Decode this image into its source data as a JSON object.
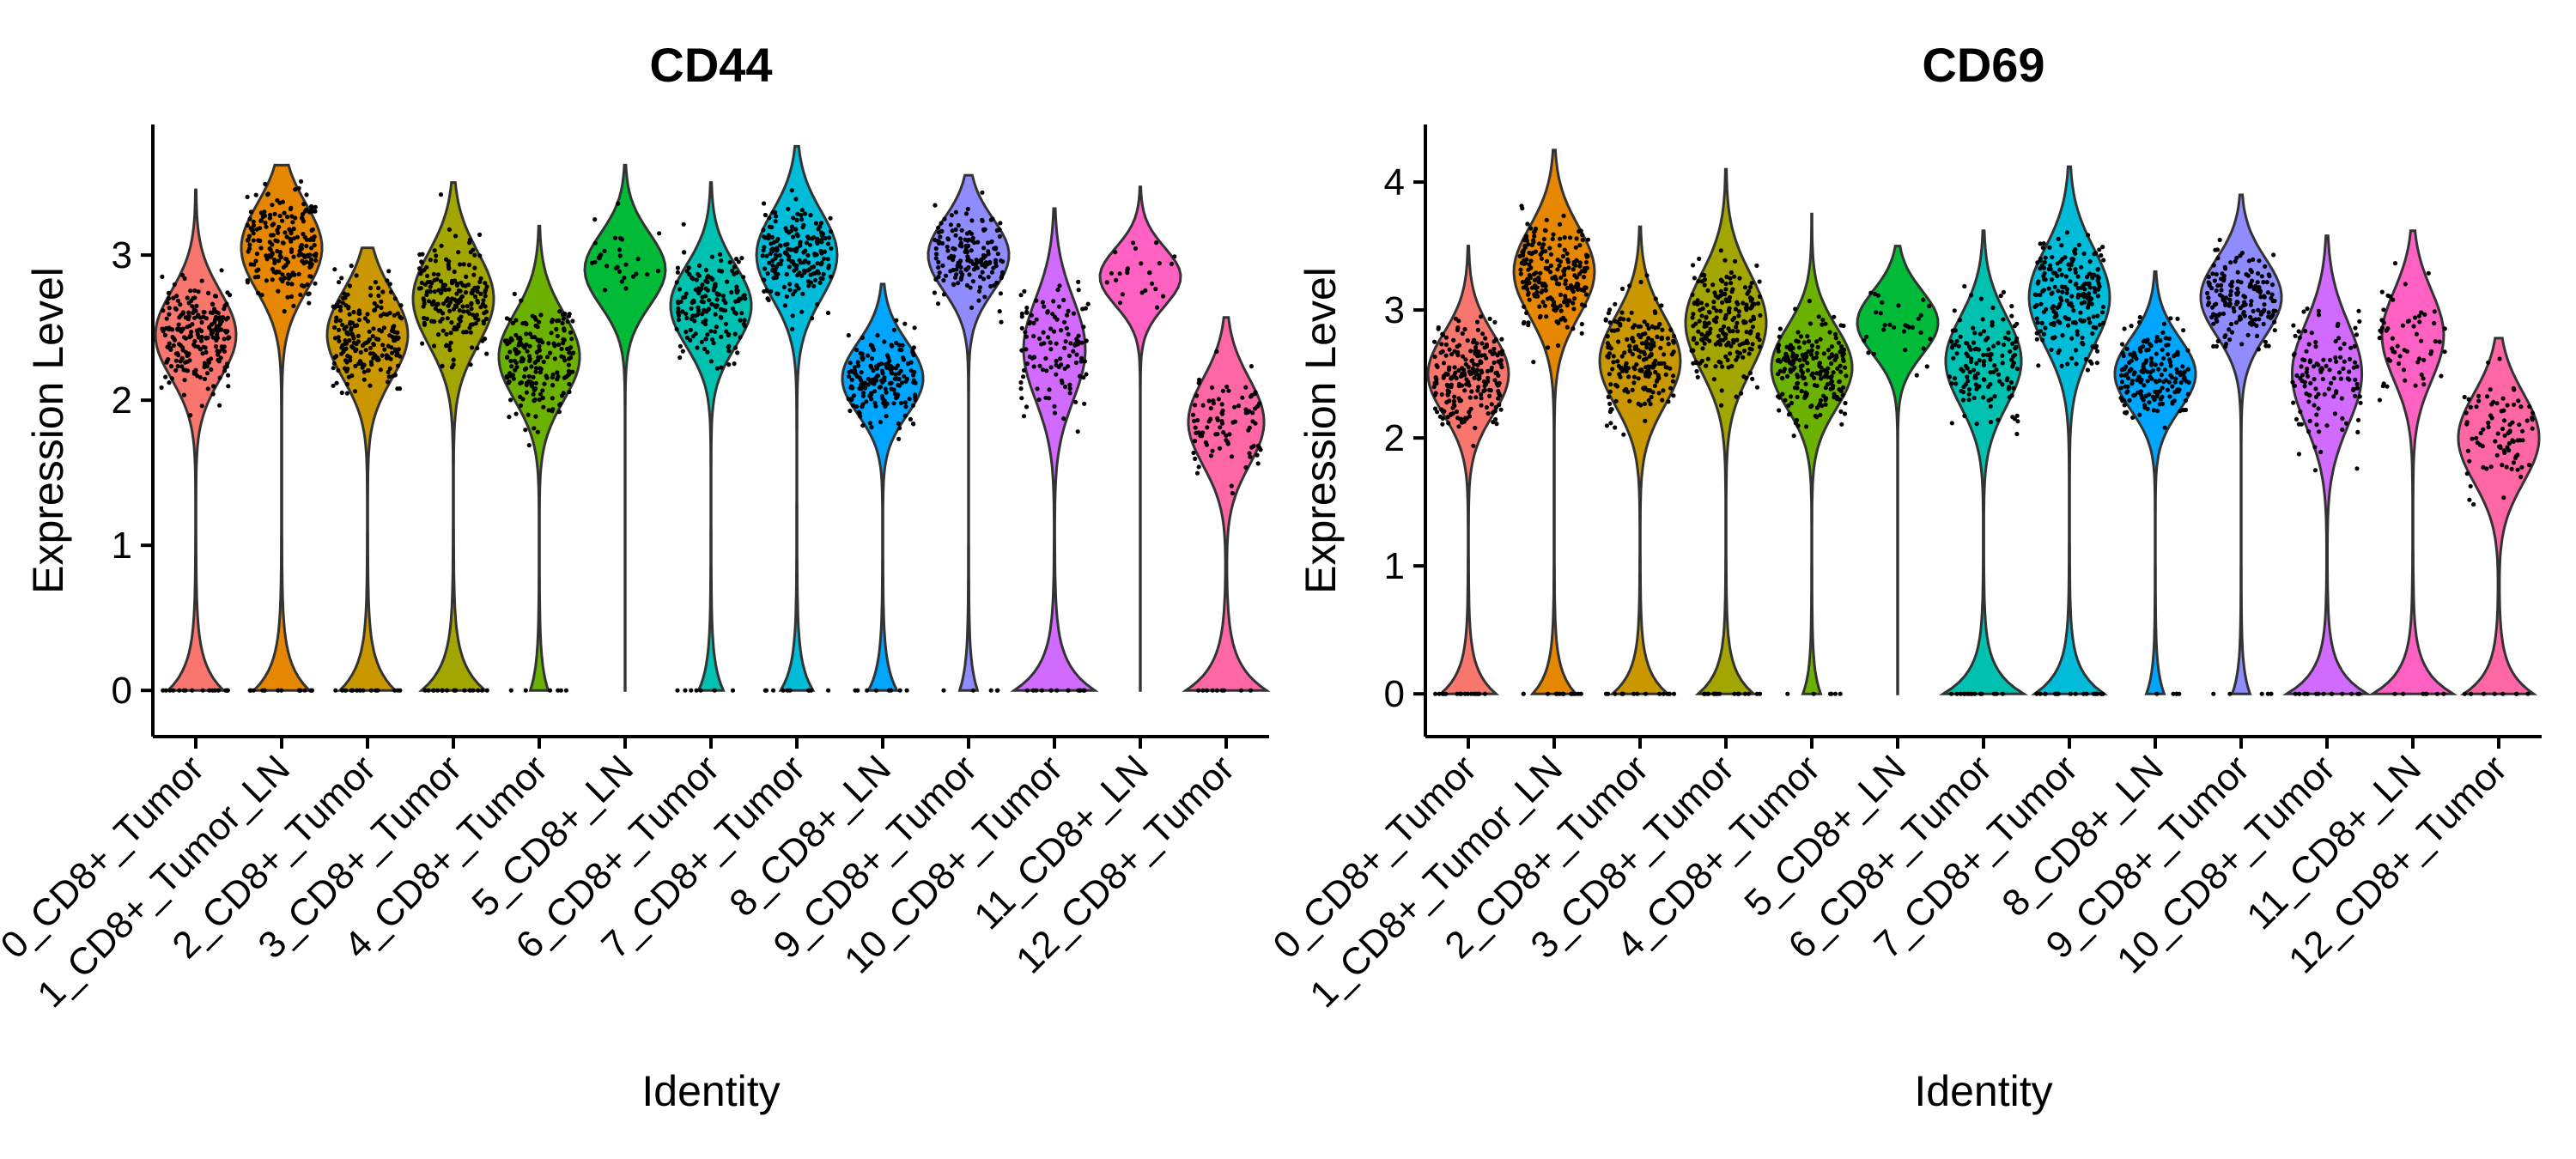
{
  "palette": [
    "#F8766D",
    "#E58700",
    "#C99800",
    "#A3A500",
    "#6BB100",
    "#00BA38",
    "#00C0AF",
    "#00BCD8",
    "#00A5FF",
    "#8F8CFF",
    "#D16BFF",
    "#FF61C3",
    "#FF67A4"
  ],
  "chart_data": [
    {
      "type": "violin",
      "title": "CD44",
      "xlabel": "Identity",
      "ylabel": "Expression Level",
      "ylim": [
        -0.2,
        3.9
      ],
      "yticks": [
        0,
        1,
        2,
        3
      ],
      "categories": [
        "0_CD8+_Tumor",
        "1_CD8+_Tumor_LN",
        "2_CD8+_Tumor",
        "3_CD8+_Tumor",
        "4_CD8+_Tumor",
        "5_CD8+_LN",
        "6_CD8+_Tumor",
        "7_CD8+_Tumor",
        "8_CD8+_LN",
        "9_CD8+_Tumor",
        "10_CD8+_Tumor",
        "11_CD8+_LN",
        "12_CD8+_Tumor"
      ],
      "groups": [
        {
          "max": 3.45,
          "mode": 2.45,
          "spread": 0.3,
          "zero_frac": 0.3,
          "count": 230
        },
        {
          "max": 3.62,
          "mode": 3.05,
          "spread": 0.3,
          "zero_frac": 0.3,
          "count": 200
        },
        {
          "max": 3.05,
          "mode": 2.45,
          "spread": 0.3,
          "zero_frac": 0.3,
          "count": 200
        },
        {
          "max": 3.5,
          "mode": 2.7,
          "spread": 0.32,
          "zero_frac": 0.33,
          "count": 200
        },
        {
          "max": 3.2,
          "mode": 2.3,
          "spread": 0.3,
          "zero_frac": 0.12,
          "count": 200
        },
        {
          "max": 3.62,
          "mode": 2.9,
          "spread": 0.25,
          "zero_frac": 0.0,
          "count": 30
        },
        {
          "max": 3.5,
          "mode": 2.65,
          "spread": 0.28,
          "zero_frac": 0.16,
          "count": 170
        },
        {
          "max": 3.75,
          "mode": 3.0,
          "spread": 0.3,
          "zero_frac": 0.2,
          "count": 200
        },
        {
          "max": 2.8,
          "mode": 2.15,
          "spread": 0.25,
          "zero_frac": 0.18,
          "count": 180
        },
        {
          "max": 3.55,
          "mode": 3.0,
          "spread": 0.25,
          "zero_frac": 0.12,
          "count": 170
        },
        {
          "max": 3.32,
          "mode": 2.35,
          "spread": 0.35,
          "zero_frac": 0.45,
          "count": 120
        },
        {
          "max": 3.47,
          "mode": 2.85,
          "spread": 0.2,
          "zero_frac": 0.0,
          "count": 25
        },
        {
          "max": 2.57,
          "mode": 1.85,
          "spread": 0.3,
          "zero_frac": 0.4,
          "count": 90
        }
      ]
    },
    {
      "type": "violin",
      "title": "CD69",
      "xlabel": "Identity",
      "ylabel": "Expression Level",
      "ylim": [
        -0.2,
        4.45
      ],
      "yticks": [
        0,
        1,
        2,
        3,
        4
      ],
      "categories": [
        "0_CD8+_Tumor",
        "1_CD8+_Tumor_LN",
        "2_CD8+_Tumor",
        "3_CD8+_Tumor",
        "4_CD8+_Tumor",
        "5_CD8+_LN",
        "6_CD8+_Tumor",
        "7_CD8+_Tumor",
        "8_CD8+_LN",
        "9_CD8+_Tumor",
        "10_CD8+_Tumor",
        "11_CD8+_LN",
        "12_CD8+_Tumor"
      ],
      "groups": [
        {
          "max": 3.5,
          "mode": 2.5,
          "spread": 0.32,
          "zero_frac": 0.3,
          "count": 230
        },
        {
          "max": 4.25,
          "mode": 3.3,
          "spread": 0.35,
          "zero_frac": 0.25,
          "count": 220
        },
        {
          "max": 3.65,
          "mode": 2.6,
          "spread": 0.35,
          "zero_frac": 0.3,
          "count": 200
        },
        {
          "max": 4.1,
          "mode": 2.9,
          "spread": 0.38,
          "zero_frac": 0.3,
          "count": 210
        },
        {
          "max": 3.75,
          "mode": 2.55,
          "spread": 0.32,
          "zero_frac": 0.12,
          "count": 200
        },
        {
          "max": 3.5,
          "mode": 2.9,
          "spread": 0.25,
          "zero_frac": 0.0,
          "count": 30
        },
        {
          "max": 3.62,
          "mode": 2.6,
          "spread": 0.35,
          "zero_frac": 0.4,
          "count": 140
        },
        {
          "max": 4.12,
          "mode": 3.1,
          "spread": 0.38,
          "zero_frac": 0.35,
          "count": 210
        },
        {
          "max": 3.3,
          "mode": 2.5,
          "spread": 0.28,
          "zero_frac": 0.12,
          "count": 180
        },
        {
          "max": 3.9,
          "mode": 3.1,
          "spread": 0.3,
          "zero_frac": 0.12,
          "count": 170
        },
        {
          "max": 3.58,
          "mode": 2.5,
          "spread": 0.4,
          "zero_frac": 0.42,
          "count": 120
        },
        {
          "max": 3.62,
          "mode": 2.8,
          "spread": 0.35,
          "zero_frac": 0.45,
          "count": 60
        },
        {
          "max": 2.78,
          "mode": 2.0,
          "spread": 0.35,
          "zero_frac": 0.35,
          "count": 90
        }
      ]
    }
  ]
}
